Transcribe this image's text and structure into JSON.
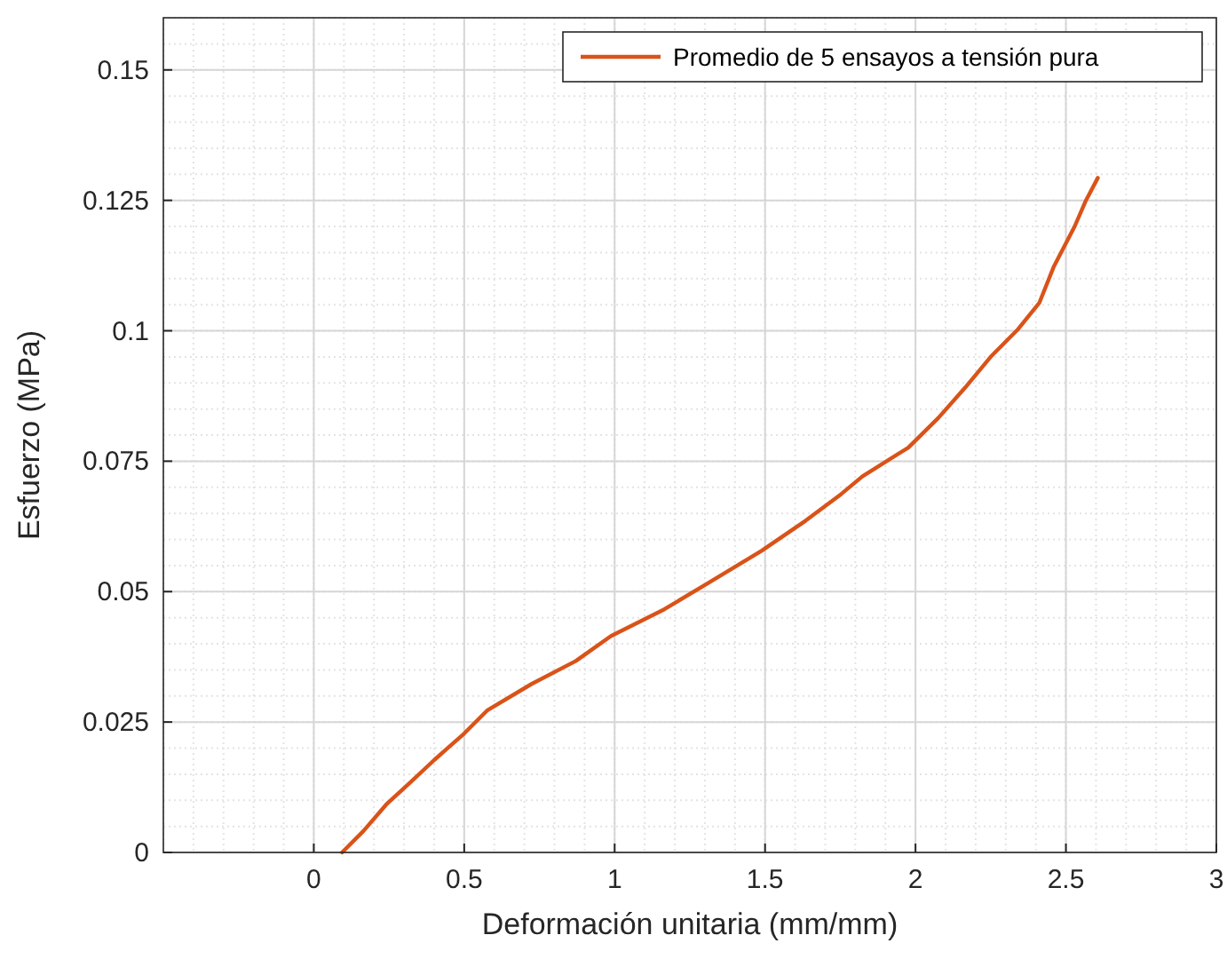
{
  "chart_data": {
    "type": "line",
    "xlabel": "Deformación unitaria (mm/mm)",
    "ylabel": "Esfuerzo (MPa)",
    "xlim": [
      -0.5,
      3
    ],
    "xticks": [
      0,
      0.5,
      1,
      1.5,
      2,
      2.5,
      3
    ],
    "ylim": [
      0,
      0.16
    ],
    "yticks": [
      0,
      0.025,
      0.05,
      0.075,
      0.1,
      0.125,
      0.15
    ],
    "grid": true,
    "legend": "top right",
    "series": [
      {
        "name": "Promedio de 5 ensayos a tensión pura",
        "color": "#d95319",
        "x": [
          0.094,
          0.165,
          0.241,
          0.324,
          0.4,
          0.5,
          0.576,
          0.724,
          0.871,
          0.988,
          1.165,
          1.312,
          1.488,
          1.635,
          1.753,
          1.824,
          1.976,
          2.076,
          2.165,
          2.253,
          2.341,
          2.412,
          2.459,
          2.529,
          2.565,
          2.606
        ],
        "values": [
          0,
          0.0041,
          0.0092,
          0.0136,
          0.0177,
          0.0228,
          0.0272,
          0.0323,
          0.0367,
          0.0415,
          0.0466,
          0.0517,
          0.0578,
          0.0636,
          0.0687,
          0.0721,
          0.0776,
          0.0833,
          0.0891,
          0.0952,
          0.1003,
          0.1054,
          0.1122,
          0.12,
          0.1248,
          0.1293
        ]
      }
    ]
  }
}
